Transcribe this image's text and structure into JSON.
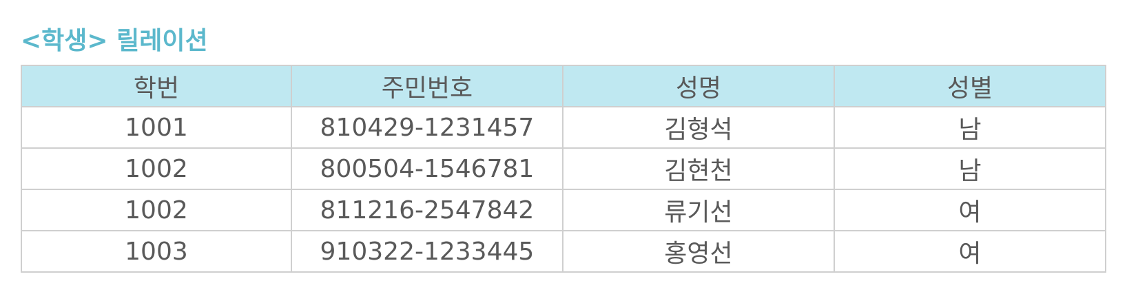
{
  "title": "<학생> 릴레이션",
  "table": {
    "headers": [
      "학번",
      "주민번호",
      "성명",
      "성별"
    ],
    "rows": [
      [
        "1001",
        "810429-1231457",
        "김형석",
        "남"
      ],
      [
        "1002",
        "800504-1546781",
        "김현천",
        "남"
      ],
      [
        "1002",
        "811216-2547842",
        "류기선",
        "여"
      ],
      [
        "1003",
        "910322-1233445",
        "홍영선",
        "여"
      ]
    ]
  },
  "colors": {
    "title": "#5bb8cc",
    "header_bg": "#bfe8f1",
    "border": "#cfcfcf",
    "text": "#595959"
  }
}
